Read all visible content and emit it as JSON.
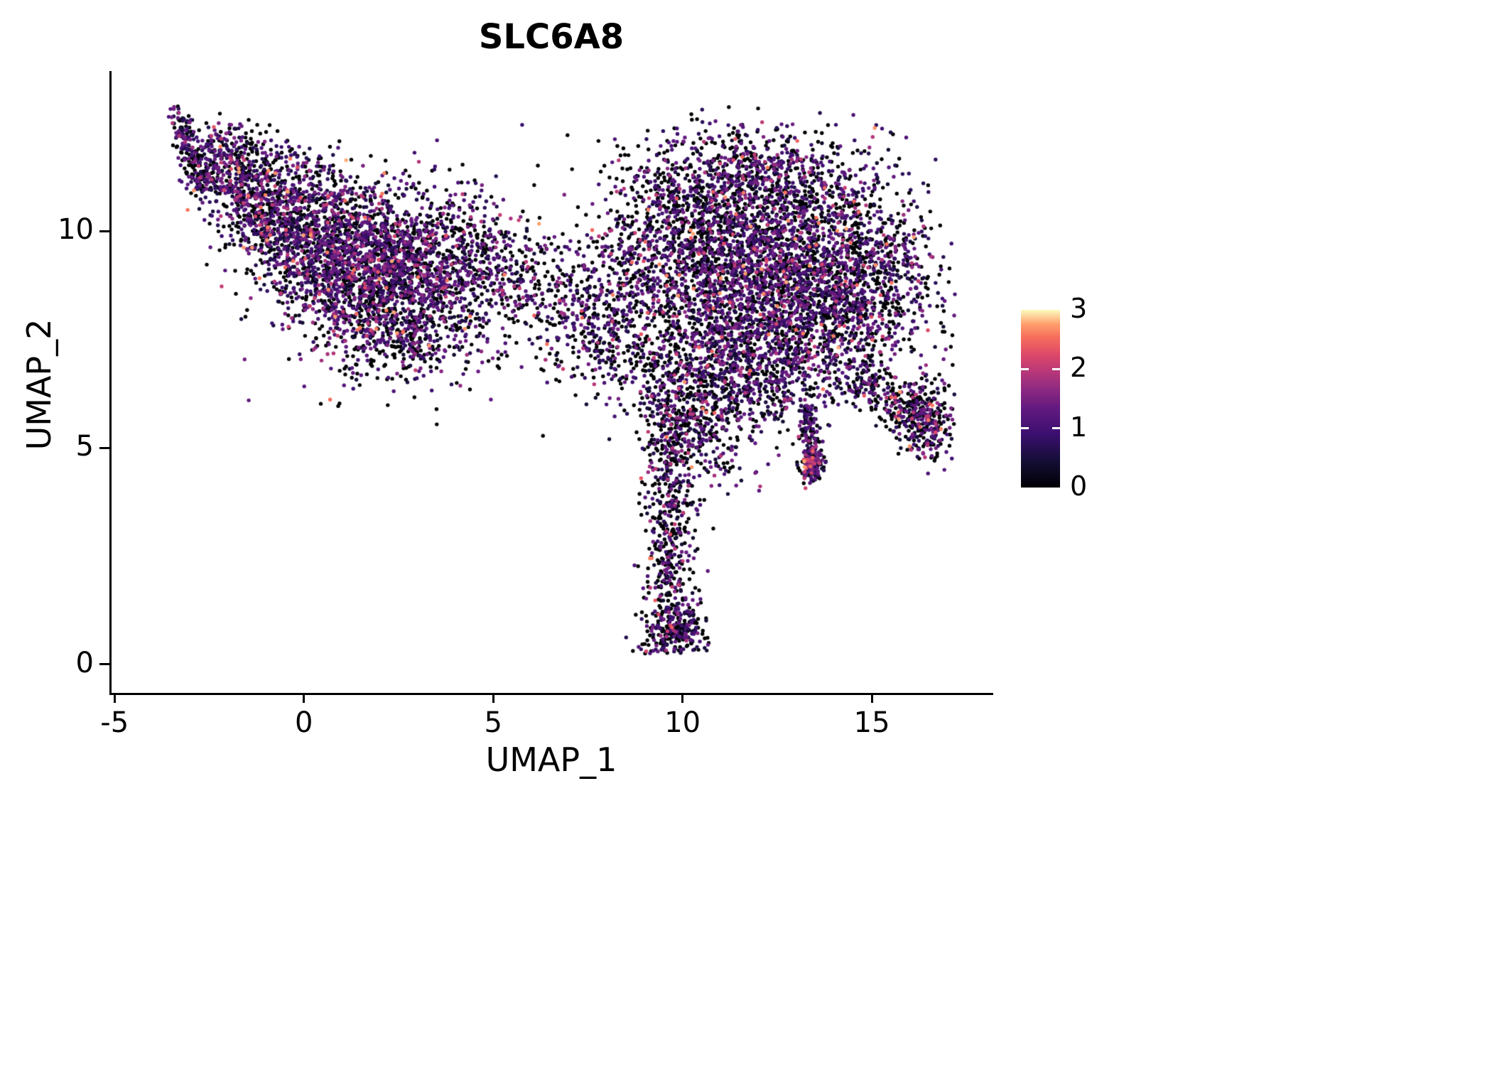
{
  "chart_data": {
    "type": "scatter",
    "title": "SLC6A8",
    "xlabel": "UMAP_1",
    "ylabel": "UMAP_2",
    "x_ticks": [
      -5,
      0,
      5,
      10,
      15
    ],
    "y_ticks": [
      0,
      5,
      10
    ],
    "x_range": [
      -5.08,
      18.15
    ],
    "y_range": [
      -0.66,
      13.7
    ],
    "data_extent": {
      "x": [
        -3.6,
        17.2
      ],
      "y": [
        0.25,
        12.9
      ]
    },
    "grid": false,
    "legend_position": "right",
    "seed": 42,
    "point_radius": 2.7,
    "expression": {
      "zero_fraction": 0.4,
      "mid_range": [
        0.35,
        1.5
      ],
      "high_prob": 0.12,
      "high_range": [
        1.4,
        2.1
      ],
      "top_prob": 0.03,
      "top_range": [
        2.1,
        2.8
      ]
    },
    "colorbar": {
      "min": 0,
      "max": 3,
      "ticks": [
        0,
        1,
        2,
        3
      ],
      "stops": [
        {
          "t": 0.0,
          "color": "#000004"
        },
        {
          "t": 0.15,
          "color": "#140e36"
        },
        {
          "t": 0.3,
          "color": "#3b0f70"
        },
        {
          "t": 0.45,
          "color": "#641a80"
        },
        {
          "t": 0.55,
          "color": "#8c2981"
        },
        {
          "t": 0.65,
          "color": "#b73779"
        },
        {
          "t": 0.75,
          "color": "#de4968"
        },
        {
          "t": 0.85,
          "color": "#f7705c"
        },
        {
          "t": 0.92,
          "color": "#fe9f6d"
        },
        {
          "t": 1.0,
          "color": "#fcfdbf"
        }
      ]
    },
    "clusters": [
      {
        "type": "streak",
        "x1": -3.35,
        "y1": 12.75,
        "x2": -2.7,
        "y2": 11.1,
        "w": 0.14,
        "n": 170,
        "zf": 0.5
      },
      {
        "type": "gauss",
        "cx": -2.05,
        "cy": 11.4,
        "sx": 0.55,
        "sy": 0.5,
        "n": 380
      },
      {
        "type": "gauss",
        "cx": -1.0,
        "cy": 10.55,
        "sx": 0.6,
        "sy": 0.55,
        "n": 420
      },
      {
        "type": "gauss",
        "cx": 0.4,
        "cy": 9.8,
        "sx": 0.95,
        "sy": 0.75,
        "n": 950
      },
      {
        "type": "gauss",
        "cx": 1.7,
        "cy": 9.0,
        "sx": 1.05,
        "sy": 0.9,
        "n": 1050
      },
      {
        "type": "gauss",
        "cx": 3.1,
        "cy": 9.4,
        "sx": 0.9,
        "sy": 0.75,
        "n": 650
      },
      {
        "type": "gauss",
        "cx": 2.5,
        "cy": 7.6,
        "sx": 0.95,
        "sy": 0.6,
        "n": 380,
        "zf": 0.45
      },
      {
        "type": "gauss",
        "cx": 4.6,
        "cy": 9.1,
        "sx": 0.8,
        "sy": 0.85,
        "n": 330,
        "zf": 0.45
      },
      {
        "type": "streak",
        "x1": -1.9,
        "y1": 12.1,
        "x2": 1.0,
        "y2": 11.3,
        "w": 0.3,
        "n": 90,
        "zf": 0.5
      },
      {
        "type": "gauss",
        "cx": 6.1,
        "cy": 8.6,
        "sx": 1.0,
        "sy": 0.95,
        "n": 200,
        "zf": 0.5
      },
      {
        "type": "gauss",
        "cx": 7.6,
        "cy": 8.2,
        "sx": 0.75,
        "sy": 0.9,
        "n": 260,
        "zf": 0.45
      },
      {
        "type": "gauss",
        "cx": 8.7,
        "cy": 8.8,
        "sx": 0.7,
        "sy": 1.0,
        "n": 300,
        "zf": 0.45
      },
      {
        "type": "gauss",
        "cx": 12.4,
        "cy": 9.0,
        "sx": 1.6,
        "sy": 1.3,
        "n": 2700
      },
      {
        "type": "gauss",
        "cx": 12.2,
        "cy": 11.2,
        "sx": 1.5,
        "sy": 0.6,
        "n": 650,
        "zf": 0.45
      },
      {
        "type": "gauss",
        "cx": 15.0,
        "cy": 8.8,
        "sx": 1.0,
        "sy": 1.0,
        "n": 650
      },
      {
        "type": "gauss",
        "cx": 10.3,
        "cy": 9.6,
        "sx": 0.8,
        "sy": 1.1,
        "n": 450,
        "zf": 0.5
      },
      {
        "type": "gauss",
        "cx": 12.0,
        "cy": 6.8,
        "sx": 1.3,
        "sy": 0.7,
        "n": 600
      },
      {
        "type": "gauss",
        "cx": 10.4,
        "cy": 5.9,
        "sx": 0.7,
        "sy": 0.6,
        "n": 280,
        "zf": 0.5
      },
      {
        "type": "streak",
        "x1": 14.6,
        "y1": 6.6,
        "x2": 16.5,
        "y2": 5.6,
        "w": 0.28,
        "n": 260,
        "zf": 0.5
      },
      {
        "type": "gauss",
        "cx": 16.5,
        "cy": 5.6,
        "sx": 0.38,
        "sy": 0.45,
        "n": 220,
        "zf": 0.45,
        "hot": 1.5
      },
      {
        "type": "streak",
        "x1": 9.65,
        "y1": 5.9,
        "x2": 9.7,
        "y2": 1.3,
        "w": 0.33,
        "n": 520,
        "zf": 0.55
      },
      {
        "type": "gauss",
        "cx": 9.8,
        "cy": 0.75,
        "sx": 0.42,
        "sy": 0.33,
        "n": 280,
        "zf": 0.5
      },
      {
        "type": "streak",
        "x1": 13.3,
        "y1": 5.9,
        "x2": 13.45,
        "y2": 4.5,
        "w": 0.12,
        "n": 150,
        "zf": 0.45
      },
      {
        "type": "gauss",
        "cx": 13.4,
        "cy": 4.6,
        "sx": 0.16,
        "sy": 0.2,
        "n": 110,
        "zf": 0.35,
        "hot": 2
      },
      {
        "type": "gauss",
        "cx": 9.3,
        "cy": 10.8,
        "sx": 0.9,
        "sy": 0.6,
        "n": 130,
        "zf": 0.6
      },
      {
        "type": "gauss",
        "cx": 9.0,
        "cy": 7.0,
        "sx": 0.9,
        "sy": 0.7,
        "n": 150,
        "zf": 0.5
      },
      {
        "type": "gauss",
        "cx": 10.9,
        "cy": 4.9,
        "sx": 0.5,
        "sy": 0.5,
        "n": 70,
        "zf": 0.5
      }
    ]
  }
}
